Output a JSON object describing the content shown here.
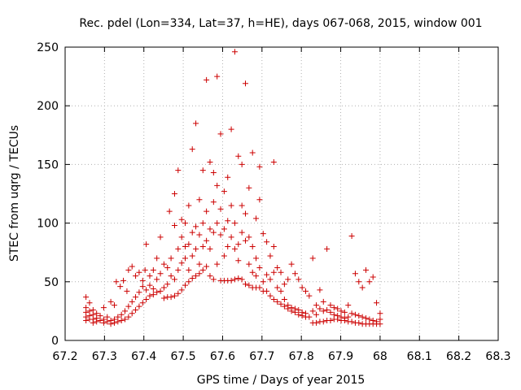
{
  "chart_data": {
    "type": "scatter",
    "title": "Rec. pdel (Lon=334, Lat=37, h=HE), days 067-068, 2015, window 001",
    "xlabel": "GPS time / Days of year 2015",
    "ylabel": "STEC from uqrg / TECUs",
    "xlim": [
      67.2,
      68.3
    ],
    "ylim": [
      0,
      250
    ],
    "xticks": [
      "67.2",
      "67.3",
      "67.4",
      "67.5",
      "67.6",
      "67.7",
      "67.8",
      "67.9",
      "68",
      "68.1",
      "68.2",
      "68.3"
    ],
    "yticks": [
      "0",
      "50",
      "100",
      "150",
      "200",
      "250"
    ],
    "marker": "+",
    "color": "#cc0000",
    "series": [
      {
        "name": "STEC",
        "points": [
          [
            67.253,
            37
          ],
          [
            67.253,
            28
          ],
          [
            67.253,
            24
          ],
          [
            67.253,
            20
          ],
          [
            67.253,
            17
          ],
          [
            67.262,
            32
          ],
          [
            67.262,
            25
          ],
          [
            67.262,
            21
          ],
          [
            67.262,
            18
          ],
          [
            67.271,
            26
          ],
          [
            67.271,
            22
          ],
          [
            67.271,
            18
          ],
          [
            67.271,
            15
          ],
          [
            67.28,
            23
          ],
          [
            67.28,
            19
          ],
          [
            67.28,
            16
          ],
          [
            67.289,
            21
          ],
          [
            67.289,
            17
          ],
          [
            67.298,
            28
          ],
          [
            67.298,
            18
          ],
          [
            67.298,
            15
          ],
          [
            67.307,
            20
          ],
          [
            67.307,
            16
          ],
          [
            67.316,
            33
          ],
          [
            67.316,
            17
          ],
          [
            67.316,
            14
          ],
          [
            67.325,
            30
          ],
          [
            67.325,
            18
          ],
          [
            67.325,
            15
          ],
          [
            67.33,
            50
          ],
          [
            67.334,
            20
          ],
          [
            67.334,
            16
          ],
          [
            67.34,
            46
          ],
          [
            67.343,
            22
          ],
          [
            67.343,
            17
          ],
          [
            67.348,
            51
          ],
          [
            67.352,
            25
          ],
          [
            67.352,
            18
          ],
          [
            67.357,
            42
          ],
          [
            67.361,
            60
          ],
          [
            67.361,
            29
          ],
          [
            67.361,
            20
          ],
          [
            67.37,
            63
          ],
          [
            67.37,
            33
          ],
          [
            67.37,
            23
          ],
          [
            67.379,
            55
          ],
          [
            67.379,
            37
          ],
          [
            67.379,
            26
          ],
          [
            67.388,
            58
          ],
          [
            67.388,
            41
          ],
          [
            67.388,
            29
          ],
          [
            67.397,
            51
          ],
          [
            67.397,
            46
          ],
          [
            67.397,
            32
          ],
          [
            67.403,
            60
          ],
          [
            67.406,
            82
          ],
          [
            67.406,
            43
          ],
          [
            67.406,
            35
          ],
          [
            67.415,
            55
          ],
          [
            67.415,
            47
          ],
          [
            67.415,
            38
          ],
          [
            67.424,
            60
          ],
          [
            67.424,
            44
          ],
          [
            67.424,
            39
          ],
          [
            67.433,
            70
          ],
          [
            67.433,
            52
          ],
          [
            67.433,
            41
          ],
          [
            67.442,
            88
          ],
          [
            67.442,
            57
          ],
          [
            67.442,
            42
          ],
          [
            67.451,
            65
          ],
          [
            67.451,
            45
          ],
          [
            67.451,
            36
          ],
          [
            67.46,
            62
          ],
          [
            67.46,
            48
          ],
          [
            67.46,
            37
          ],
          [
            67.465,
            110
          ],
          [
            67.469,
            70
          ],
          [
            67.469,
            55
          ],
          [
            67.469,
            37
          ],
          [
            67.478,
            125
          ],
          [
            67.478,
            98
          ],
          [
            67.478,
            52
          ],
          [
            67.478,
            38
          ],
          [
            67.487,
            145
          ],
          [
            67.487,
            78
          ],
          [
            67.487,
            60
          ],
          [
            67.487,
            40
          ],
          [
            67.496,
            103
          ],
          [
            67.496,
            88
          ],
          [
            67.496,
            66
          ],
          [
            67.496,
            43
          ],
          [
            67.505,
            100
          ],
          [
            67.505,
            80
          ],
          [
            67.505,
            70
          ],
          [
            67.505,
            47
          ],
          [
            67.514,
            115
          ],
          [
            67.514,
            82
          ],
          [
            67.514,
            60
          ],
          [
            67.514,
            50
          ],
          [
            67.523,
            163
          ],
          [
            67.523,
            92
          ],
          [
            67.523,
            72
          ],
          [
            67.523,
            53
          ],
          [
            67.532,
            185
          ],
          [
            67.532,
            97
          ],
          [
            67.532,
            78
          ],
          [
            67.532,
            55
          ],
          [
            67.541,
            120
          ],
          [
            67.541,
            90
          ],
          [
            67.541,
            65
          ],
          [
            67.541,
            57
          ],
          [
            67.55,
            145
          ],
          [
            67.55,
            100
          ],
          [
            67.55,
            80
          ],
          [
            67.55,
            60
          ],
          [
            67.559,
            222
          ],
          [
            67.559,
            110
          ],
          [
            67.559,
            85
          ],
          [
            67.559,
            63
          ],
          [
            67.568,
            152
          ],
          [
            67.568,
            95
          ],
          [
            67.568,
            78
          ],
          [
            67.568,
            55
          ],
          [
            67.577,
            143
          ],
          [
            67.577,
            118
          ],
          [
            67.577,
            92
          ],
          [
            67.577,
            52
          ],
          [
            67.586,
            225
          ],
          [
            67.586,
            132
          ],
          [
            67.586,
            100
          ],
          [
            67.586,
            65
          ],
          [
            67.595,
            176
          ],
          [
            67.595,
            112
          ],
          [
            67.595,
            90
          ],
          [
            67.595,
            51
          ],
          [
            67.604,
            127
          ],
          [
            67.604,
            95
          ],
          [
            67.604,
            72
          ],
          [
            67.604,
            51
          ],
          [
            67.613,
            139
          ],
          [
            67.613,
            102
          ],
          [
            67.613,
            80
          ],
          [
            67.613,
            51
          ],
          [
            67.622,
            180
          ],
          [
            67.622,
            115
          ],
          [
            67.622,
            88
          ],
          [
            67.622,
            51
          ],
          [
            67.631,
            246
          ],
          [
            67.631,
            100
          ],
          [
            67.631,
            78
          ],
          [
            67.631,
            52
          ],
          [
            67.64,
            157
          ],
          [
            67.64,
            82
          ],
          [
            67.64,
            68
          ],
          [
            67.64,
            53
          ],
          [
            67.649,
            150
          ],
          [
            67.649,
            115
          ],
          [
            67.649,
            92
          ],
          [
            67.649,
            52
          ],
          [
            67.658,
            219
          ],
          [
            67.658,
            108
          ],
          [
            67.658,
            85
          ],
          [
            67.658,
            48
          ],
          [
            67.667,
            130
          ],
          [
            67.667,
            88
          ],
          [
            67.667,
            65
          ],
          [
            67.667,
            47
          ],
          [
            67.676,
            160
          ],
          [
            67.676,
            80
          ],
          [
            67.676,
            58
          ],
          [
            67.676,
            45
          ],
          [
            67.685,
            104
          ],
          [
            67.685,
            70
          ],
          [
            67.685,
            55
          ],
          [
            67.685,
            45
          ],
          [
            67.694,
            148
          ],
          [
            67.694,
            120
          ],
          [
            67.694,
            62
          ],
          [
            67.694,
            45
          ],
          [
            67.703,
            91
          ],
          [
            67.703,
            50
          ],
          [
            67.703,
            42
          ],
          [
            67.712,
            84
          ],
          [
            67.712,
            56
          ],
          [
            67.712,
            42
          ],
          [
            67.721,
            72
          ],
          [
            67.721,
            52
          ],
          [
            67.721,
            38
          ],
          [
            67.73,
            152
          ],
          [
            67.73,
            80
          ],
          [
            67.73,
            58
          ],
          [
            67.73,
            35
          ],
          [
            67.739,
            62
          ],
          [
            67.739,
            45
          ],
          [
            67.739,
            33
          ],
          [
            67.748,
            58
          ],
          [
            67.748,
            42
          ],
          [
            67.748,
            31
          ],
          [
            67.757,
            48
          ],
          [
            67.757,
            35
          ],
          [
            67.757,
            29
          ],
          [
            67.766,
            52
          ],
          [
            67.766,
            30
          ],
          [
            67.766,
            27
          ],
          [
            67.775,
            65
          ],
          [
            67.775,
            28
          ],
          [
            67.775,
            25
          ],
          [
            67.784,
            57
          ],
          [
            67.784,
            27
          ],
          [
            67.784,
            24
          ],
          [
            67.793,
            52
          ],
          [
            67.793,
            26
          ],
          [
            67.793,
            22
          ],
          [
            67.802,
            45
          ],
          [
            67.802,
            24
          ],
          [
            67.802,
            21
          ],
          [
            67.811,
            42
          ],
          [
            67.811,
            23
          ],
          [
            67.811,
            20
          ],
          [
            67.82,
            38
          ],
          [
            67.82,
            20
          ],
          [
            67.829,
            70
          ],
          [
            67.829,
            25
          ],
          [
            67.829,
            15
          ],
          [
            67.838,
            30
          ],
          [
            67.838,
            22
          ],
          [
            67.838,
            15
          ],
          [
            67.847,
            43
          ],
          [
            67.847,
            27
          ],
          [
            67.847,
            16
          ],
          [
            67.856,
            33
          ],
          [
            67.856,
            25
          ],
          [
            67.856,
            16
          ],
          [
            67.865,
            78
          ],
          [
            67.865,
            26
          ],
          [
            67.865,
            17
          ],
          [
            67.874,
            30
          ],
          [
            67.874,
            24
          ],
          [
            67.874,
            17
          ],
          [
            67.883,
            28
          ],
          [
            67.883,
            22
          ],
          [
            67.883,
            18
          ],
          [
            67.892,
            27
          ],
          [
            67.892,
            21
          ],
          [
            67.892,
            18
          ],
          [
            67.901,
            25
          ],
          [
            67.901,
            20
          ],
          [
            67.901,
            17
          ],
          [
            67.91,
            24
          ],
          [
            67.91,
            19
          ],
          [
            67.91,
            17
          ],
          [
            67.919,
            30
          ],
          [
            67.919,
            20
          ],
          [
            67.919,
            16
          ],
          [
            67.928,
            89
          ],
          [
            67.928,
            23
          ],
          [
            67.928,
            16
          ],
          [
            67.937,
            57
          ],
          [
            67.937,
            22
          ],
          [
            67.937,
            15
          ],
          [
            67.946,
            50
          ],
          [
            67.946,
            21
          ],
          [
            67.946,
            15
          ],
          [
            67.955,
            45
          ],
          [
            67.955,
            20
          ],
          [
            67.955,
            14
          ],
          [
            67.964,
            60
          ],
          [
            67.964,
            19
          ],
          [
            67.964,
            14
          ],
          [
            67.973,
            50
          ],
          [
            67.973,
            18
          ],
          [
            67.973,
            14
          ],
          [
            67.982,
            54
          ],
          [
            67.982,
            17
          ],
          [
            67.982,
            14
          ],
          [
            67.991,
            32
          ],
          [
            67.991,
            16
          ],
          [
            67.991,
            14
          ],
          [
            68.0,
            23
          ],
          [
            68.0,
            18
          ],
          [
            68.0,
            14
          ]
        ]
      }
    ]
  }
}
